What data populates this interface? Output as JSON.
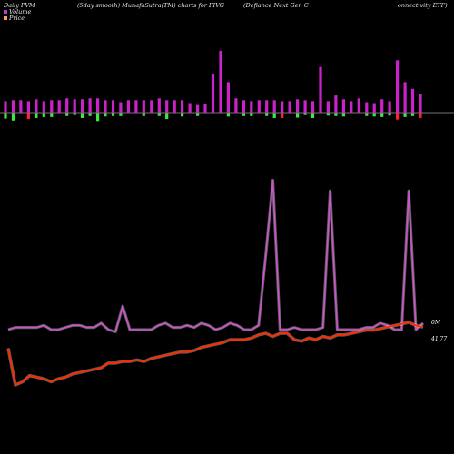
{
  "header": {
    "left": "Daily PVM",
    "mid1": "(5day smooth) MunafaSutra(TM) charts for FIVG",
    "mid2": "(Defiance   Next Gen  C",
    "right": "onnectivity ETF)"
  },
  "legend": [
    {
      "label": "Volume",
      "color": "#cc33cc"
    },
    {
      "label": "Price",
      "color": "#ff9966"
    }
  ],
  "chart_data": {
    "type": "line",
    "title": "Daily PVM (5day smooth) MunafaSutra(TM) charts for FIVG (Defiance Next Gen Connectivity ETF)",
    "colors": {
      "volume_line": "#cc55cc",
      "price_line": "#ff2a00",
      "bar_up": "#cc22cc",
      "bar_down": "#ff2222",
      "bar_neg": "#33ee33"
    },
    "labels": {
      "volume_end": "0M",
      "price_end": "41.77"
    },
    "volume_bars": {
      "up": [
        1.2,
        1.3,
        1.3,
        1.2,
        1.4,
        1.2,
        1.3,
        1.3,
        1.5,
        1.4,
        1.4,
        1.5,
        1.5,
        1.3,
        1.3,
        1.1,
        1.3,
        1.3,
        1.3,
        1.3,
        1.5,
        1.3,
        1.3,
        1.3,
        1.0,
        0.8,
        0.9,
        4.0,
        6.5,
        3.2,
        1.5,
        1.3,
        1.2,
        1.3,
        1.3,
        1.3,
        1.2,
        1.2,
        1.4,
        1.3,
        1.2,
        4.8,
        1.2,
        1.8,
        1.4,
        1.2,
        1.5,
        1.1,
        1.0,
        1.4,
        1.2,
        5.5,
        3.2,
        2.5,
        1.9
      ],
      "down_red": [
        0,
        0,
        0,
        1.2,
        0,
        0,
        0,
        0,
        0,
        0,
        0,
        0,
        0,
        0,
        0,
        0,
        0,
        0,
        0,
        0,
        0,
        0,
        0,
        0,
        0,
        0,
        0,
        0,
        0,
        0,
        0,
        0,
        0,
        0,
        0,
        0,
        1.0,
        0,
        0,
        0,
        0,
        0,
        0,
        0,
        0,
        0,
        0,
        0,
        0,
        0,
        0,
        1.3,
        0,
        0,
        1.0
      ],
      "down_green": [
        1.1,
        1.5,
        0,
        0,
        1.0,
        0.8,
        0.8,
        0,
        0.6,
        0.4,
        1.0,
        0.6,
        1.6,
        0.7,
        0.6,
        0.6,
        0,
        0,
        0.6,
        0,
        0.6,
        1.2,
        0,
        0.7,
        0,
        0.6,
        0,
        0,
        0,
        0.7,
        0,
        0.6,
        0.6,
        0,
        0.6,
        1.0,
        0,
        0,
        0.9,
        0.4,
        1.0,
        0,
        0.5,
        0.6,
        0.7,
        0,
        0,
        0.6,
        0.7,
        0.8,
        0.5,
        0,
        0.8,
        0.6,
        0
      ]
    },
    "series": [
      {
        "name": "Volume",
        "values": [
          1.0,
          1.1,
          1.1,
          1.1,
          1.1,
          1.2,
          1.0,
          1.0,
          1.1,
          1.2,
          1.2,
          1.1,
          1.1,
          1.3,
          1.0,
          0.9,
          2.1,
          1.0,
          1.0,
          1.0,
          1.0,
          1.2,
          1.3,
          1.1,
          1.1,
          1.2,
          1.1,
          1.3,
          1.2,
          1.0,
          1.1,
          1.3,
          1.2,
          1.0,
          1.0,
          1.2,
          4.5,
          8.0,
          1.0,
          1.0,
          1.1,
          1.0,
          1.0,
          1.0,
          1.1,
          7.5,
          1.0,
          1.0,
          1.0,
          1.0,
          1.1,
          1.1,
          1.3,
          1.2,
          1.0,
          1.0,
          7.5,
          1.0,
          1.3
        ]
      },
      {
        "name": "Price",
        "values": [
          40.35,
          38.0,
          38.2,
          38.6,
          38.5,
          38.4,
          38.2,
          38.4,
          38.5,
          38.7,
          38.8,
          38.9,
          39.0,
          39.1,
          39.4,
          39.4,
          39.5,
          39.5,
          39.6,
          39.5,
          39.7,
          39.8,
          39.9,
          40.0,
          40.1,
          40.1,
          40.2,
          40.4,
          40.5,
          40.6,
          40.7,
          40.9,
          40.9,
          40.9,
          41.0,
          41.2,
          41.3,
          41.1,
          41.3,
          41.3,
          40.9,
          40.8,
          41.0,
          40.9,
          41.1,
          41.0,
          41.2,
          41.2,
          41.3,
          41.4,
          41.5,
          41.5,
          41.6,
          41.7,
          41.8,
          41.9,
          42.0,
          41.8,
          41.7
        ]
      }
    ]
  }
}
